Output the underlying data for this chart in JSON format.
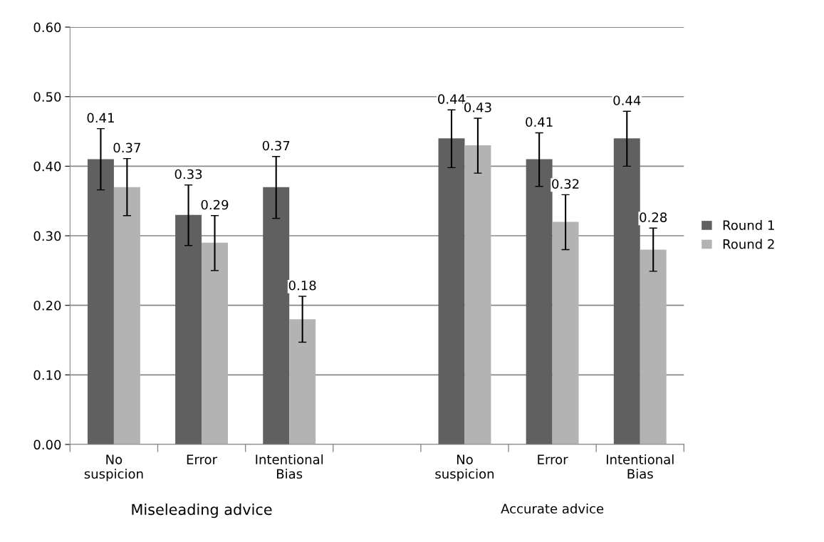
{
  "chart_data": {
    "type": "bar",
    "categories": [
      "No\nsuspicion",
      "Error",
      "Intentional\nBias",
      null,
      "No\nsuspicion",
      "Error",
      "Intentional\nBias"
    ],
    "series": [
      {
        "name": "Round 1",
        "color": "#606060",
        "values": [
          0.41,
          0.33,
          0.37,
          null,
          0.44,
          0.41,
          0.44
        ],
        "errors": [
          [
            0.366,
            0.454
          ],
          [
            0.286,
            0.373
          ],
          [
            0.325,
            0.414
          ],
          null,
          [
            0.398,
            0.481
          ],
          [
            0.371,
            0.448
          ],
          [
            0.4,
            0.479
          ]
        ]
      },
      {
        "name": "Round 2",
        "color": "#b3b3b3",
        "values": [
          0.37,
          0.29,
          0.18,
          null,
          0.43,
          0.32,
          0.28
        ],
        "errors": [
          [
            0.329,
            0.411
          ],
          [
            0.25,
            0.329
          ],
          [
            0.147,
            0.213
          ],
          null,
          [
            0.39,
            0.469
          ],
          [
            0.28,
            0.359
          ],
          [
            0.249,
            0.311
          ]
        ]
      }
    ],
    "ylim": [
      0,
      0.6
    ],
    "yticks": [
      {
        "value": 0,
        "label": "0.00"
      },
      {
        "value": 0.1,
        "label": "0.10"
      },
      {
        "value": 0.2,
        "label": "0.20"
      },
      {
        "value": 0.3,
        "label": "0.30"
      },
      {
        "value": 0.4,
        "label": "0.40"
      },
      {
        "value": 0.5,
        "label": "0.50"
      },
      {
        "value": 0.6,
        "label": "0.60"
      }
    ],
    "data_labels": true,
    "grid": "y",
    "legend": "right",
    "annotations": [
      "Miseleading advice",
      "Accurate advice"
    ]
  }
}
